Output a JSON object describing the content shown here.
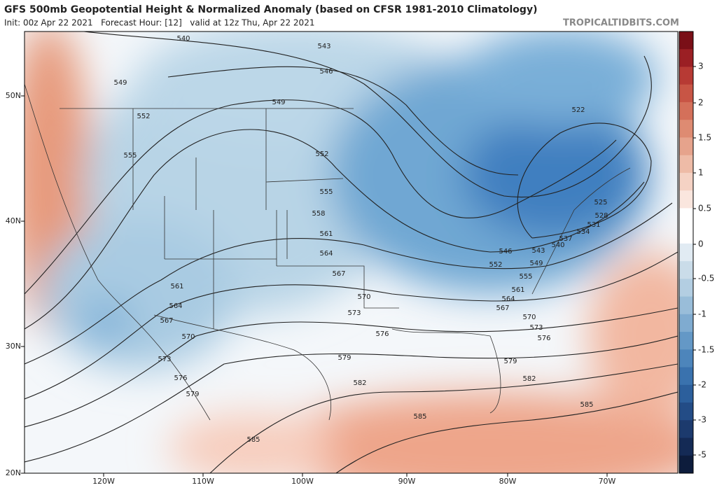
{
  "header": {
    "title": "GFS 500mb Geopotential Height & Normalized Anomaly (based on CFSR 1981-2010 Climatology)",
    "subtitle": "Init: 00z Apr 22 2021   Forecast Hour: [12]   valid at 12z Thu, Apr 22 2021",
    "credit": "TROPICALTIDBITS.COM"
  },
  "map": {
    "lat_labels": [
      "50N",
      "40N",
      "30N",
      "20N"
    ],
    "lon_labels": [
      "120W",
      "110W",
      "100W",
      "90W",
      "80W",
      "70W"
    ],
    "contour_labels": [
      540,
      543,
      546,
      549,
      549,
      552,
      552,
      555,
      555,
      558,
      561,
      564,
      567,
      570,
      573,
      576,
      579,
      582,
      585,
      585,
      561,
      564,
      567,
      570,
      573,
      576,
      579,
      522,
      525,
      528,
      531,
      534,
      537,
      540,
      543,
      546,
      549,
      552,
      555,
      561,
      564,
      567,
      570,
      573,
      576,
      579,
      582,
      585
    ]
  },
  "colorbar": {
    "ticks": [
      3,
      2,
      1.5,
      1,
      0.5,
      0,
      -0.5,
      -1,
      -1.5,
      -2,
      -3,
      -5
    ]
  }
}
